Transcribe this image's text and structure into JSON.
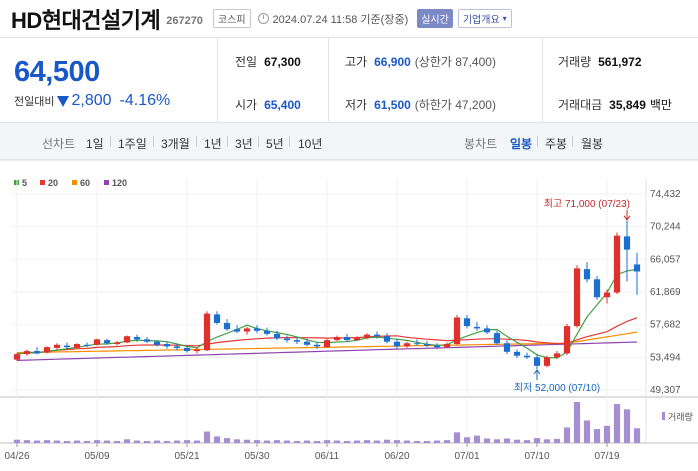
{
  "header": {
    "stock_name": "HD현대건설기계",
    "stock_code": "267270",
    "market_badge": "코스피",
    "timestamp": "2024.07.24 11:58 기준(장중)",
    "realtime_label": "실시간",
    "company_button": "기업개요",
    "icons": {
      "clock": "clock-icon",
      "caret": "chevron-down-icon"
    }
  },
  "price": {
    "current": "64,500",
    "change_label": "전일대비",
    "change": "2,800",
    "change_pct": "-4.16%",
    "direction": "down"
  },
  "stats": {
    "prev_close": {
      "label": "전일",
      "value": "67,300"
    },
    "high": {
      "label": "고가",
      "value": "66,900",
      "sub": "(상한가 87,400)"
    },
    "volume": {
      "label": "거래량",
      "value": "561,972"
    },
    "open": {
      "label": "시가",
      "value": "65,400"
    },
    "low": {
      "label": "저가",
      "value": "61,500",
      "sub": "(하한가 47,200)"
    },
    "trade_value": {
      "label": "거래대금",
      "value": "35,849",
      "unit": "백만"
    }
  },
  "period_tabs": {
    "label": "선차트",
    "items": [
      "1일",
      "1주일",
      "3개월",
      "1년",
      "3년",
      "5년",
      "10년"
    ]
  },
  "candle_tabs": {
    "label": "봉차트",
    "items": [
      "일봉",
      "주봉",
      "월봉"
    ],
    "active": "일봉"
  },
  "colors": {
    "up": "#e0302b",
    "down": "#1a6fd1",
    "ma5": "#43a047",
    "ma20": "#e53935",
    "ma60": "#fb8c00",
    "ma120": "#8e44ad",
    "volume": "#a58fd1",
    "accent": "#1a58c7"
  },
  "chart_data": {
    "type": "candlestick",
    "legend": [
      "5",
      "20",
      "60",
      "120"
    ],
    "y_ticks": [
      "74,432",
      "70,244",
      "66,057",
      "61,869",
      "57,682",
      "53,494",
      "49,307"
    ],
    "ylim": [
      49307,
      74432
    ],
    "x_ticks": [
      {
        "label": "04/26",
        "index": 0
      },
      {
        "label": "05/09",
        "index": 8
      },
      {
        "label": "05/21",
        "index": 17
      },
      {
        "label": "05/30",
        "index": 24
      },
      {
        "label": "06/11",
        "index": 31
      },
      {
        "label": "06/20",
        "index": 38
      },
      {
        "label": "07/01",
        "index": 45
      },
      {
        "label": "07/10",
        "index": 52
      },
      {
        "label": "07/19",
        "index": 59
      }
    ],
    "annotations": {
      "high": {
        "text": "최고 71,000 (07/23)",
        "value": 71000
      },
      "low": {
        "text": "최저 52,000 (07/10)",
        "value": 52000
      }
    },
    "volume_label": "거래량",
    "candles": [
      [
        53200,
        54100,
        53000,
        53900
      ],
      [
        53900,
        54500,
        53700,
        54300
      ],
      [
        54300,
        54800,
        53900,
        54000
      ],
      [
        54100,
        54900,
        54000,
        54800
      ],
      [
        54700,
        55300,
        54500,
        55100
      ],
      [
        55000,
        55400,
        54500,
        54800
      ],
      [
        54700,
        55300,
        54600,
        55200
      ],
      [
        55100,
        55400,
        54800,
        55000
      ],
      [
        55100,
        55900,
        55000,
        55800
      ],
      [
        55700,
        55900,
        55100,
        55300
      ],
      [
        55200,
        55600,
        55000,
        55400
      ],
      [
        55400,
        56300,
        55300,
        56200
      ],
      [
        56100,
        56400,
        55500,
        55800
      ],
      [
        55800,
        56100,
        55300,
        55500
      ],
      [
        55500,
        55700,
        54900,
        55100
      ],
      [
        55200,
        55500,
        54600,
        54900
      ],
      [
        54900,
        55200,
        54400,
        54700
      ],
      [
        54700,
        55000,
        54100,
        54300
      ],
      [
        54300,
        54800,
        54000,
        54500
      ],
      [
        54400,
        59400,
        54300,
        59100
      ],
      [
        59000,
        59400,
        57700,
        57900
      ],
      [
        57900,
        58400,
        56900,
        57100
      ],
      [
        57100,
        57600,
        56600,
        56800
      ],
      [
        56800,
        57400,
        56400,
        57200
      ],
      [
        57200,
        57600,
        56600,
        56900
      ],
      [
        56900,
        57300,
        56300,
        56500
      ],
      [
        56500,
        56900,
        55700,
        55900
      ],
      [
        55900,
        56300,
        55400,
        55700
      ],
      [
        55700,
        56100,
        55200,
        55500
      ],
      [
        55500,
        55900,
        54900,
        55100
      ],
      [
        55100,
        55500,
        54600,
        54900
      ],
      [
        54800,
        55900,
        54700,
        55700
      ],
      [
        55700,
        56300,
        55600,
        56100
      ],
      [
        56100,
        56500,
        55500,
        55700
      ],
      [
        55700,
        56200,
        55600,
        56000
      ],
      [
        56000,
        56600,
        55800,
        56400
      ],
      [
        56400,
        56800,
        55900,
        56200
      ],
      [
        56200,
        56600,
        55300,
        55500
      ],
      [
        55500,
        55900,
        54600,
        54900
      ],
      [
        54900,
        55500,
        54700,
        55300
      ],
      [
        55300,
        55800,
        55000,
        55200
      ],
      [
        55200,
        55600,
        54800,
        55000
      ],
      [
        55000,
        55300,
        54600,
        54800
      ],
      [
        54800,
        55400,
        54700,
        55200
      ],
      [
        55200,
        58900,
        55100,
        58600
      ],
      [
        58500,
        58900,
        57200,
        57500
      ],
      [
        57400,
        58000,
        56900,
        57200
      ],
      [
        57200,
        57600,
        56500,
        56700
      ],
      [
        56600,
        56900,
        55100,
        55300
      ],
      [
        55300,
        55700,
        53900,
        54200
      ],
      [
        54200,
        54500,
        53400,
        53700
      ],
      [
        53700,
        54100,
        53300,
        53500
      ],
      [
        53500,
        53900,
        52000,
        52400
      ],
      [
        52400,
        53700,
        52200,
        53500
      ],
      [
        53500,
        54300,
        53300,
        54000
      ],
      [
        54000,
        57800,
        53800,
        57500
      ],
      [
        57500,
        65300,
        57300,
        64900
      ],
      [
        64800,
        65700,
        63100,
        63500
      ],
      [
        63500,
        63900,
        60900,
        61200
      ],
      [
        61200,
        62200,
        60400,
        61800
      ],
      [
        61800,
        69500,
        61600,
        69100
      ],
      [
        69000,
        71000,
        63200,
        67300
      ],
      [
        65400,
        66900,
        61500,
        64500
      ]
    ],
    "volume": [
      0.08,
      0.07,
      0.06,
      0.07,
      0.06,
      0.05,
      0.06,
      0.05,
      0.07,
      0.06,
      0.05,
      0.09,
      0.06,
      0.05,
      0.06,
      0.05,
      0.06,
      0.07,
      0.06,
      0.28,
      0.16,
      0.12,
      0.09,
      0.08,
      0.07,
      0.06,
      0.07,
      0.06,
      0.05,
      0.06,
      0.05,
      0.07,
      0.06,
      0.05,
      0.06,
      0.07,
      0.06,
      0.08,
      0.07,
      0.06,
      0.05,
      0.05,
      0.06,
      0.07,
      0.26,
      0.14,
      0.18,
      0.11,
      0.09,
      0.11,
      0.08,
      0.07,
      0.12,
      0.09,
      0.1,
      0.38,
      1.0,
      0.55,
      0.34,
      0.42,
      0.95,
      0.82,
      0.36
    ]
  }
}
